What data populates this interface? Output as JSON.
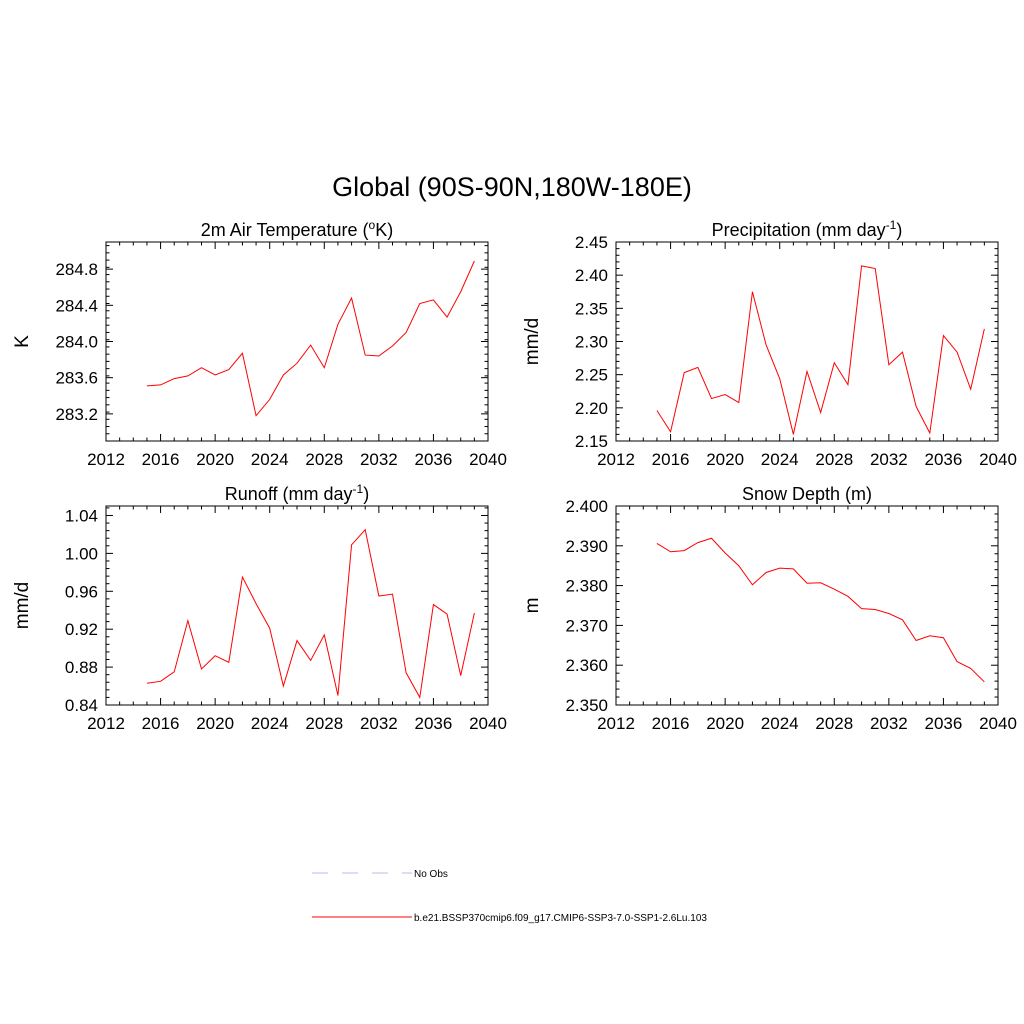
{
  "title": "Global (90S-90N,180W-180E)",
  "line_color": "#ff0000",
  "chart_data": [
    {
      "id": "temp",
      "type": "line",
      "title": "2m Air Temperature (",
      "title_sup": "o",
      "title_suffix": "K)",
      "ylabel": "K",
      "xlim": [
        2012,
        2040
      ],
      "xticks": [
        2012,
        2016,
        2020,
        2024,
        2028,
        2032,
        2036,
        2040
      ],
      "ylim": [
        282.9,
        285.1
      ],
      "yticks": [
        "283.2",
        "283.6",
        "284.0",
        "284.4",
        "284.8"
      ],
      "ytick_values": [
        283.2,
        283.6,
        284.0,
        284.4,
        284.8
      ],
      "x": [
        2015,
        2016,
        2017,
        2018,
        2019,
        2020,
        2021,
        2022,
        2023,
        2024,
        2025,
        2026,
        2027,
        2028,
        2029,
        2030,
        2031,
        2032,
        2033,
        2034,
        2035,
        2036,
        2037,
        2038,
        2039
      ],
      "values": [
        283.51,
        283.52,
        283.59,
        283.62,
        283.71,
        283.63,
        283.69,
        283.87,
        283.18,
        283.36,
        283.63,
        283.76,
        283.96,
        283.71,
        284.19,
        284.48,
        283.85,
        283.84,
        283.95,
        284.1,
        284.42,
        284.46,
        284.27,
        284.55,
        284.89
      ]
    },
    {
      "id": "precip",
      "type": "line",
      "title": "Precipitation (mm day",
      "title_sup": "-1",
      "title_suffix": ")",
      "ylabel": "mm/d",
      "xlim": [
        2012,
        2040
      ],
      "xticks": [
        2012,
        2016,
        2020,
        2024,
        2028,
        2032,
        2036,
        2040
      ],
      "ylim": [
        2.15,
        2.45
      ],
      "yticks": [
        "2.15",
        "2.20",
        "2.25",
        "2.30",
        "2.35",
        "2.40",
        "2.45"
      ],
      "ytick_values": [
        2.15,
        2.2,
        2.25,
        2.3,
        2.35,
        2.4,
        2.45
      ],
      "x": [
        2015,
        2016,
        2017,
        2018,
        2019,
        2020,
        2021,
        2022,
        2023,
        2024,
        2025,
        2026,
        2027,
        2028,
        2029,
        2030,
        2031,
        2032,
        2033,
        2034,
        2035,
        2036,
        2037,
        2038,
        2039
      ],
      "values": [
        2.196,
        2.164,
        2.253,
        2.261,
        2.214,
        2.22,
        2.208,
        2.375,
        2.295,
        2.244,
        2.16,
        2.255,
        2.193,
        2.268,
        2.235,
        2.414,
        2.41,
        2.265,
        2.284,
        2.202,
        2.162,
        2.309,
        2.284,
        2.228,
        2.319
      ]
    },
    {
      "id": "runoff",
      "type": "line",
      "title": "Runoff (mm day",
      "title_sup": "-1",
      "title_suffix": ")",
      "ylabel": "mm/d",
      "xlim": [
        2012,
        2040
      ],
      "xticks": [
        2012,
        2016,
        2020,
        2024,
        2028,
        2032,
        2036,
        2040
      ],
      "ylim": [
        0.84,
        1.05
      ],
      "yticks": [
        "0.84",
        "0.88",
        "0.92",
        "0.96",
        "1.00",
        "1.04"
      ],
      "ytick_values": [
        0.84,
        0.88,
        0.92,
        0.96,
        1.0,
        1.04
      ],
      "x": [
        2015,
        2016,
        2017,
        2018,
        2019,
        2020,
        2021,
        2022,
        2023,
        2024,
        2025,
        2026,
        2027,
        2028,
        2029,
        2030,
        2031,
        2032,
        2033,
        2034,
        2035,
        2036,
        2037,
        2038,
        2039
      ],
      "values": [
        0.863,
        0.865,
        0.875,
        0.929,
        0.878,
        0.892,
        0.885,
        0.975,
        0.947,
        0.921,
        0.86,
        0.908,
        0.887,
        0.914,
        0.85,
        1.009,
        1.025,
        0.955,
        0.957,
        0.874,
        0.848,
        0.946,
        0.936,
        0.871,
        0.937
      ]
    },
    {
      "id": "snow",
      "type": "line",
      "title": "Snow Depth (m)",
      "title_sup": "",
      "title_suffix": "",
      "ylabel": "m",
      "xlim": [
        2012,
        2040
      ],
      "xticks": [
        2012,
        2016,
        2020,
        2024,
        2028,
        2032,
        2036,
        2040
      ],
      "ylim": [
        2.35,
        2.4
      ],
      "yticks": [
        "2.350",
        "2.360",
        "2.370",
        "2.380",
        "2.390",
        "2.400"
      ],
      "ytick_values": [
        2.35,
        2.36,
        2.37,
        2.38,
        2.39,
        2.4
      ],
      "x": [
        2015,
        2016,
        2017,
        2018,
        2019,
        2020,
        2021,
        2022,
        2023,
        2024,
        2025,
        2026,
        2027,
        2028,
        2029,
        2030,
        2031,
        2032,
        2033,
        2034,
        2035,
        2036,
        2037,
        2038,
        2039
      ],
      "values": [
        2.3906,
        2.3885,
        2.3888,
        2.3908,
        2.3919,
        2.3882,
        2.385,
        2.3802,
        2.3833,
        2.3844,
        2.3842,
        2.3806,
        2.3807,
        2.3791,
        2.3773,
        2.3742,
        2.374,
        2.373,
        2.3714,
        2.3662,
        2.3674,
        2.3669,
        2.3609,
        2.3592,
        2.3558
      ]
    }
  ],
  "legend": {
    "items": [
      {
        "label": "No Obs",
        "color": "#b8b8ee",
        "dash": "dashed"
      },
      {
        "label": "b.e21.BSSP370cmip6.f09_g17.CMIP6-SSP3-7.0-SSP1-2.6Lu.103",
        "color": "#ff0000",
        "dash": "solid"
      }
    ]
  }
}
